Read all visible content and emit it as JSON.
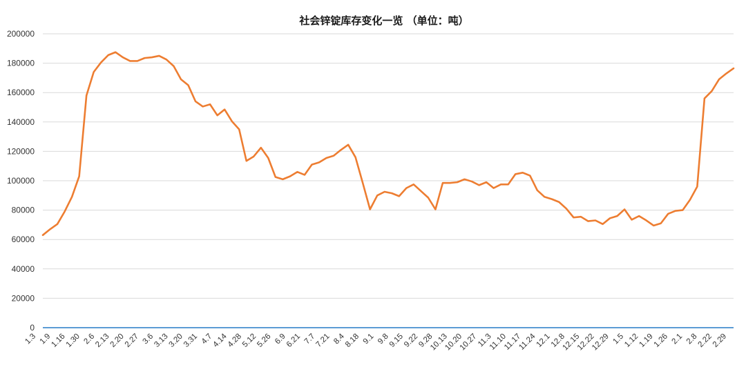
{
  "colors": {
    "series": "#ed7d31",
    "baseline": "#5b9bd5",
    "grid": "#d9d9d9",
    "text": "#333333"
  },
  "chart_data": {
    "type": "line",
    "title": "社会锌锭库存变化一览 （单位：吨）",
    "xlabel": "",
    "ylabel": "",
    "ylim": [
      0,
      200000
    ],
    "yticks": [
      0,
      20000,
      40000,
      60000,
      80000,
      100000,
      120000,
      140000,
      160000,
      180000,
      200000
    ],
    "grid": true,
    "legend": "none",
    "xtick_labels": [
      "1.3",
      "1.9",
      "1.16",
      "1.30",
      "2.6",
      "2.13",
      "2.20",
      "2.27",
      "3.6",
      "3.13",
      "3.20",
      "3.31",
      "4.7",
      "4.14",
      "4.28",
      "5.12",
      "5.26",
      "6.9",
      "6.21",
      "7.7",
      "7.21",
      "8.4",
      "8.18",
      "9.1",
      "9.8",
      "9.15",
      "9.22",
      "9.28",
      "10.13",
      "10.20",
      "10.27",
      "11.3",
      "11.10",
      "11.17",
      "11.24",
      "12.1",
      "12.8",
      "12.15",
      "12.22",
      "12.29",
      "1.5",
      "1.12",
      "1.19",
      "1.26",
      "2.1",
      "2.8",
      "2.22",
      "2.29"
    ],
    "series": [
      {
        "values": [
          63000,
          67000,
          70500,
          79000,
          89000,
          103000,
          158000,
          174000,
          180500,
          185500,
          187500,
          184000,
          181500,
          181500,
          183500,
          184000,
          185000,
          182500,
          178000,
          169000,
          165000,
          154000,
          150500,
          152000,
          144500,
          148500,
          140500,
          135000,
          113500,
          116500,
          122500,
          115500,
          102500,
          101000,
          103000,
          106000,
          104000,
          111000,
          112500,
          115500,
          117000,
          121000,
          124500,
          116000,
          98500,
          80500,
          90000,
          92500,
          91500,
          89500,
          95000,
          97500,
          93000,
          88500,
          80500,
          98500,
          98500,
          99000,
          101000,
          99500,
          97000,
          99000,
          95000,
          97500,
          97500,
          104500,
          105500,
          103500,
          93500,
          89000,
          87500,
          85500,
          81000,
          75000,
          75500,
          72500,
          73000,
          70500,
          74500,
          76000,
          80500,
          73500,
          76000,
          73000,
          69500,
          71000,
          77500,
          79500,
          80000,
          87000,
          96000,
          156000,
          161000,
          169000,
          173000,
          176500
        ]
      },
      {
        "values": [
          0,
          0
        ]
      }
    ]
  }
}
